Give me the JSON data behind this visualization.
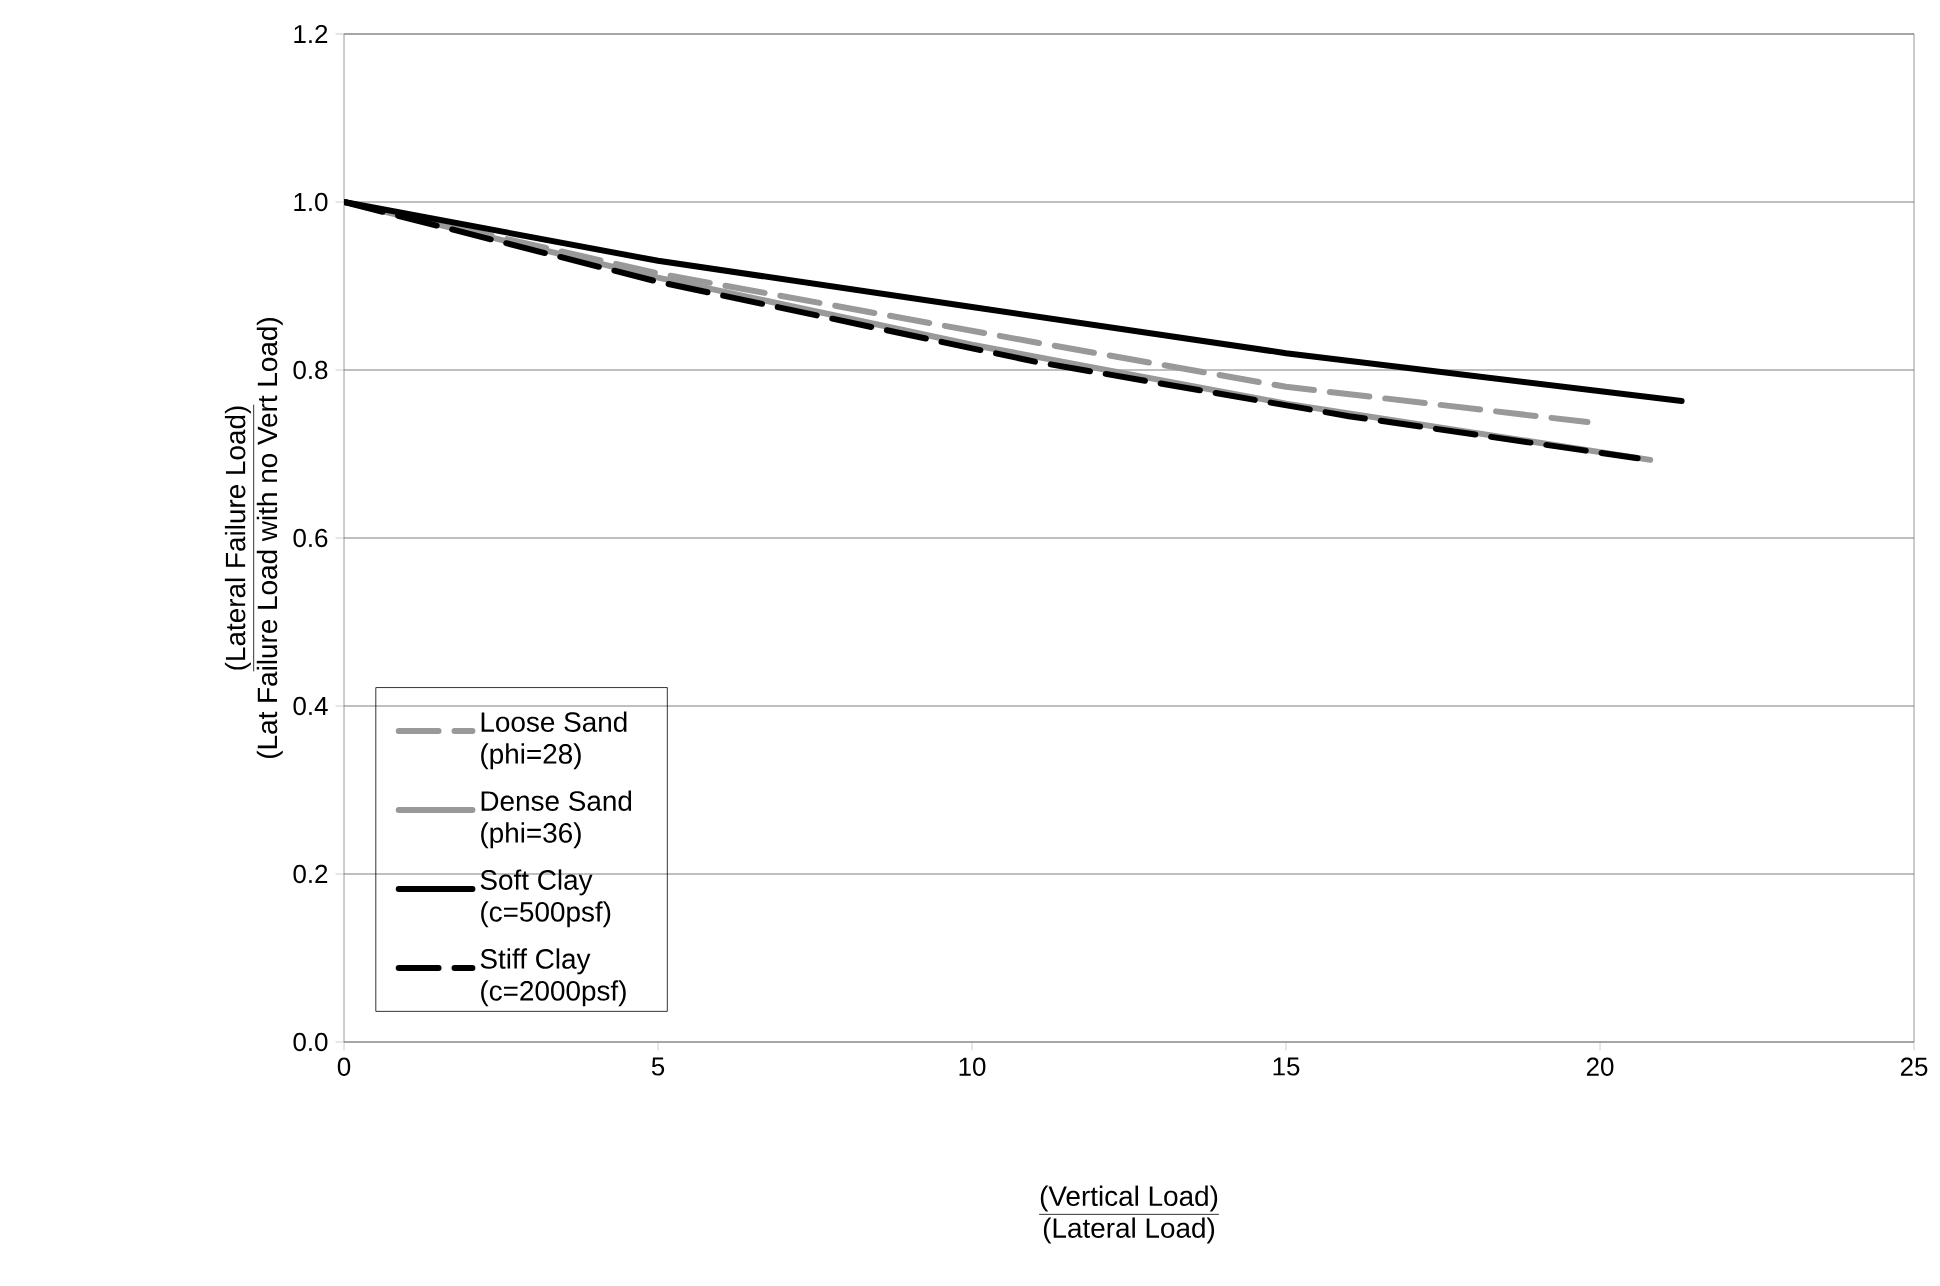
{
  "chart_data": {
    "type": "line",
    "xlabel": "(Vertical Load)",
    "ylabel": "(Lateral Failure Load)",
    "annotations": [
      "(Lateral Load)",
      "(Lat Failure Load with no Vert Load)"
    ],
    "xlim": [
      0,
      25
    ],
    "ylim": [
      0,
      1.2
    ],
    "xticks": [
      0,
      5,
      10,
      15,
      20,
      25
    ],
    "yticks": [
      {
        "value": 0,
        "label": "0.0"
      },
      0.2,
      0.4,
      0.6,
      0.8,
      {
        "value": 1,
        "label": "1.0"
      },
      1.2
    ],
    "grid": "y",
    "legend": "left",
    "marker": "none",
    "series": [
      {
        "name": "Loose Sand (phi=28)",
        "color": "#999999",
        "line_style": "dashed",
        "x": [
          0,
          5,
          11,
          15,
          19.8
        ],
        "values": [
          1.0,
          0.915,
          0.833,
          0.78,
          0.738
        ]
      },
      {
        "name": "Dense Sand (phi=36)",
        "color": "#999999",
        "line_style": "solid",
        "x": [
          0,
          5,
          10,
          15,
          20.8
        ],
        "values": [
          1.0,
          0.91,
          0.83,
          0.76,
          0.693
        ]
      },
      {
        "name": "Soft Clay (c=500psf)",
        "color": "#000000",
        "line_style": "solid",
        "x": [
          0,
          5,
          10,
          15,
          21.3
        ],
        "values": [
          1.0,
          0.93,
          0.875,
          0.82,
          0.763
        ]
      },
      {
        "name": "Stiff Clay (c=2000psf)",
        "color": "#000000",
        "line_style": "dashed",
        "x": [
          0,
          5,
          11,
          16,
          20.6
        ],
        "values": [
          1.0,
          0.905,
          0.81,
          0.745,
          0.695
        ]
      }
    ]
  }
}
